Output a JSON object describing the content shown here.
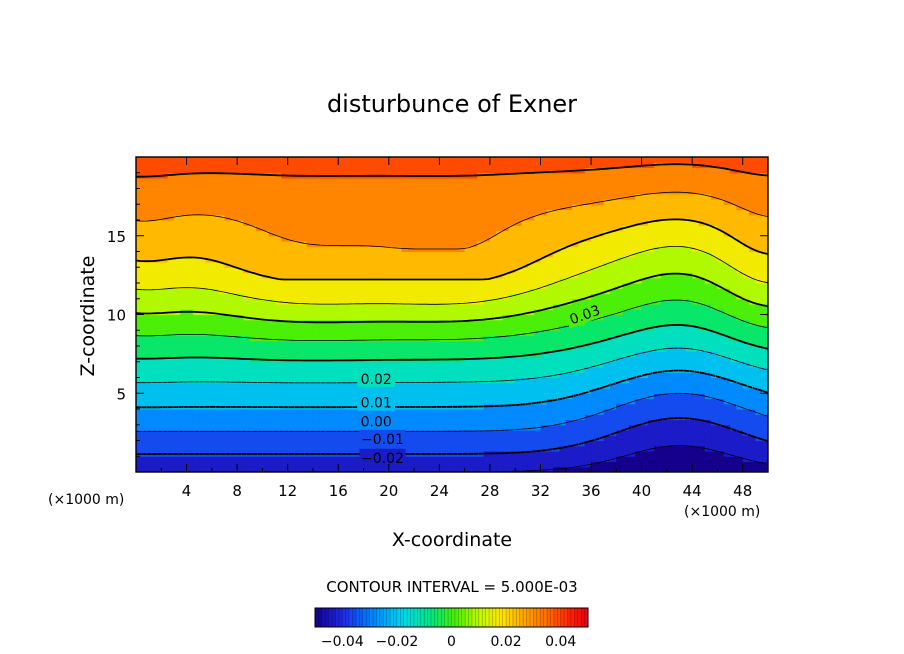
{
  "chart_data": {
    "type": "contour",
    "title": "disturbunce of Exner",
    "xlabel": "X-coordinate",
    "ylabel": "Z-coordinate",
    "x_unit_label": "(×1000 m)",
    "x_unit_label_right": "(×1000 m)",
    "xlim": [
      0,
      50
    ],
    "ylim": [
      0,
      20
    ],
    "x_ticks": [
      4,
      8,
      12,
      16,
      20,
      24,
      28,
      32,
      36,
      40,
      44,
      48
    ],
    "y_ticks": [
      5,
      10,
      15
    ],
    "contour_interval_text": "CONTOUR INTERVAL = 5.000E-03",
    "contour_interval": 0.005,
    "contour_labels": [
      {
        "text": "0.03",
        "value": 0.03,
        "x": 35.5,
        "z": 10.0,
        "rotate": -20
      },
      {
        "text": "0.02",
        "value": 0.02,
        "x": 19.0,
        "z": 5.9,
        "rotate": 0
      },
      {
        "text": "0.01",
        "value": 0.01,
        "x": 19.0,
        "z": 4.4,
        "rotate": 0
      },
      {
        "text": "0.00",
        "value": 0.0,
        "x": 19.0,
        "z": 3.2,
        "rotate": 0
      },
      {
        "text": "−0.01",
        "value": -0.01,
        "x": 19.5,
        "z": 2.1,
        "rotate": 0
      },
      {
        "text": "−0.02",
        "value": -0.02,
        "x": 19.5,
        "z": 0.9,
        "rotate": 0
      }
    ],
    "field_shape": {
      "value_at_bottom": -0.025,
      "value_at_top": 0.032,
      "warm_core_max": 0.039,
      "note_peaks_x": [
        13,
        26
      ]
    },
    "colorbar": {
      "ticks": [
        "−0.04",
        "−0.02",
        "0",
        "0.02",
        "0.04"
      ],
      "range": [
        -0.05,
        0.05
      ]
    }
  }
}
